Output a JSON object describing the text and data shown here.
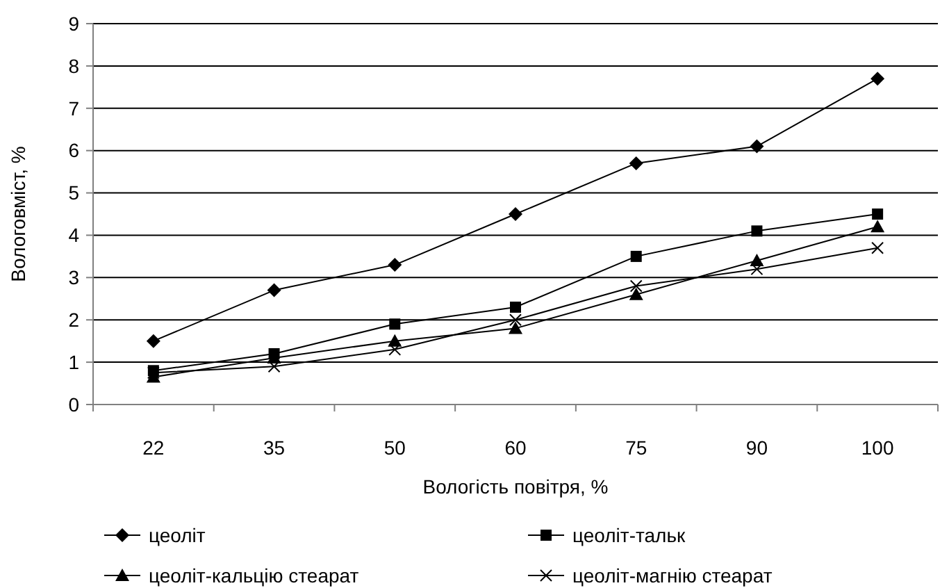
{
  "chart_data": {
    "type": "line",
    "xlabel": "Вологість повітря, %",
    "ylabel": "Вологовміст, %",
    "categories": [
      "22",
      "35",
      "50",
      "60",
      "75",
      "90",
      "100"
    ],
    "series": [
      {
        "name": "цеоліт",
        "color": "#000000",
        "marker": "diamond",
        "values": [
          1.5,
          2.7,
          3.3,
          4.5,
          5.7,
          6.1,
          7.7
        ]
      },
      {
        "name": "цеоліт-тальк",
        "color": "#000000",
        "marker": "square",
        "values": [
          0.8,
          1.2,
          1.9,
          2.3,
          3.5,
          4.1,
          4.5
        ]
      },
      {
        "name": "цеоліт-кальцію стеарат",
        "color": "#000000",
        "marker": "triangle",
        "values": [
          0.65,
          1.1,
          1.5,
          1.8,
          2.6,
          3.4,
          4.2
        ]
      },
      {
        "name": "цеоліт-магнію стеарат",
        "color": "#000000",
        "marker": "cross",
        "values": [
          0.75,
          0.9,
          1.3,
          2.0,
          2.8,
          3.2,
          3.7
        ]
      }
    ],
    "ylim": [
      0,
      9
    ],
    "yticks": [
      0,
      1,
      2,
      3,
      4,
      5,
      6,
      7,
      8,
      9
    ],
    "grid": "y",
    "legend": "bottom"
  }
}
